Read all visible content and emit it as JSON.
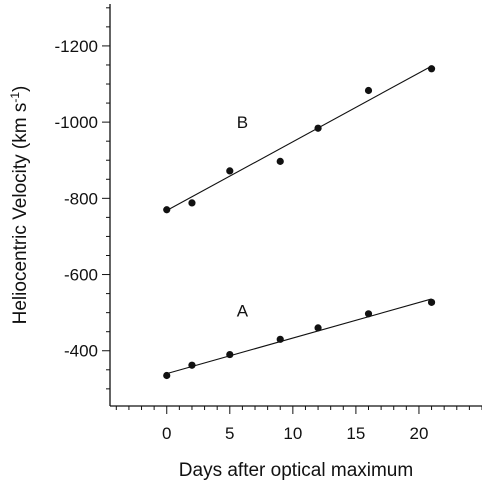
{
  "chart_data": {
    "type": "scatter",
    "xlabel": "Days after optical maximum",
    "ylabel": "Heliocentric Velocity (km s",
    "ylabel_superscript": "-1",
    "ylabel_close": ")",
    "xlim": [
      -4.5,
      25.0
    ],
    "ylim": [
      -1310,
      -255
    ],
    "y_inverted": true,
    "grid": false,
    "x_ticks": [
      {
        "value": 0,
        "label": "0"
      },
      {
        "value": 5,
        "label": "5"
      },
      {
        "value": 10,
        "label": "10"
      },
      {
        "value": 15,
        "label": "15"
      },
      {
        "value": 20,
        "label": "20"
      }
    ],
    "y_ticks": [
      {
        "value": -1200,
        "label": "-1200"
      },
      {
        "value": -1000,
        "label": "-1000"
      },
      {
        "value": -800,
        "label": "-800"
      },
      {
        "value": -600,
        "label": "-600"
      },
      {
        "value": -400,
        "label": "-400"
      }
    ],
    "x_minor_step": 1,
    "y_minor_step": 50,
    "series": [
      {
        "name": "A",
        "label_position": {
          "x": 6,
          "y": -490
        },
        "x": [
          0,
          2,
          5,
          9,
          12,
          16,
          21
        ],
        "y": [
          -335,
          -362,
          -390,
          -430,
          -460,
          -497,
          -527
        ],
        "fit": [
          [
            0,
            -340
          ],
          [
            21,
            -536
          ]
        ]
      },
      {
        "name": "B",
        "label_position": {
          "x": 6,
          "y": -985
        },
        "x": [
          0,
          2,
          5,
          9,
          12,
          16,
          21
        ],
        "y": [
          -770,
          -788,
          -872,
          -897,
          -984,
          -1083,
          -1140
        ],
        "fit": [
          [
            0,
            -768
          ],
          [
            21,
            -1147
          ]
        ]
      }
    ]
  }
}
